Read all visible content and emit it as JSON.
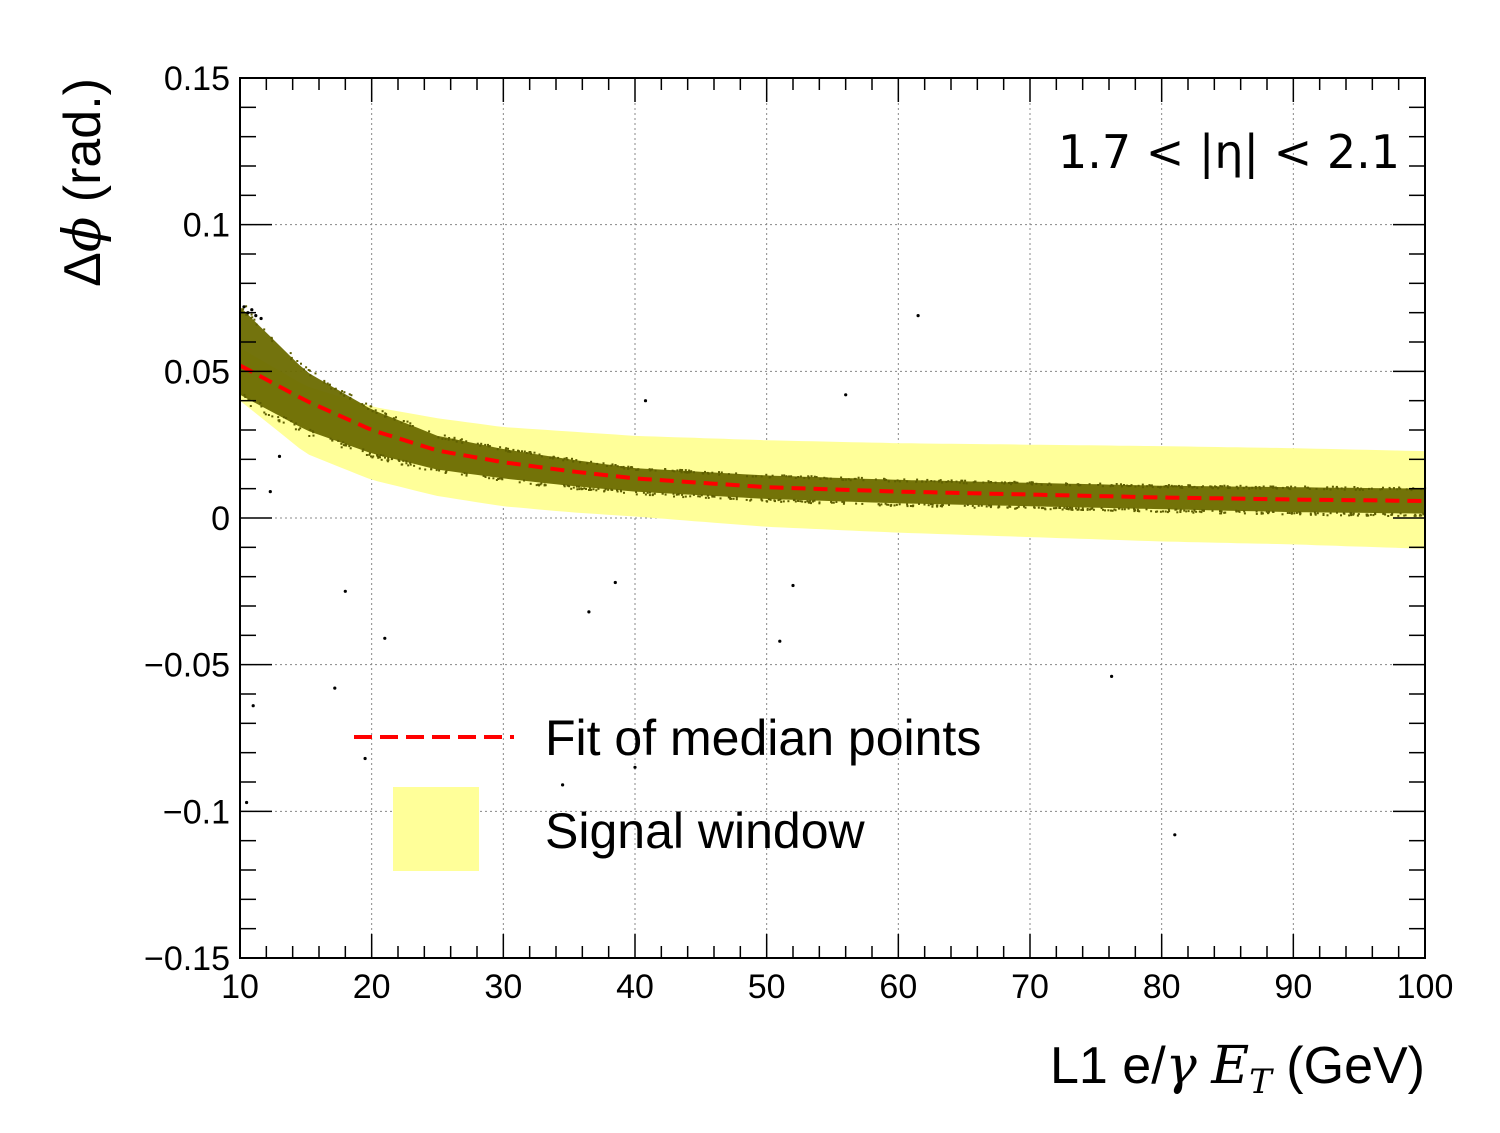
{
  "chart_data": {
    "type": "scatter",
    "title": "",
    "region_label": "1.7 < |η| < 2.1",
    "xlabel": "L1 e/γ E_T (GeV)",
    "xlabel_parts": {
      "prefix": "L1 e/",
      "gamma": "γ",
      "space": " ",
      "e": "E",
      "t": "T",
      "suffix": " (GeV)"
    },
    "ylabel": "Δϕ (rad.)",
    "ylabel_parts": {
      "delta": "Δ",
      "phi": "ϕ",
      "suffix": " (rad.)"
    },
    "xlim": [
      10,
      100
    ],
    "ylim": [
      -0.15,
      0.15
    ],
    "x_ticks": [
      10,
      20,
      30,
      40,
      50,
      60,
      70,
      80,
      90,
      100
    ],
    "y_ticks": [
      -0.15,
      -0.1,
      -0.05,
      0,
      0.05,
      0.1,
      0.15
    ],
    "x_tick_labels": [
      "10",
      "20",
      "30",
      "40",
      "50",
      "60",
      "70",
      "80",
      "90",
      "100"
    ],
    "y_tick_labels": [
      "−0.15",
      "−0.1",
      "−0.05",
      "0",
      "0.05",
      "0.1",
      "0.15"
    ],
    "grid": true,
    "legend_position": "bottom-left",
    "median_fit": {
      "name": "Fit of median points",
      "color": "#ff0000",
      "style": "dashed",
      "x": [
        10,
        15,
        20,
        25,
        30,
        35,
        40,
        50,
        60,
        70,
        80,
        90,
        100
      ],
      "y": [
        0.052,
        0.04,
        0.03,
        0.023,
        0.019,
        0.016,
        0.0135,
        0.0105,
        0.009,
        0.008,
        0.007,
        0.0063,
        0.0058
      ]
    },
    "signal_window": {
      "name": "Signal window",
      "color": "#ffff99",
      "x": [
        10,
        15,
        20,
        25,
        30,
        35,
        40,
        50,
        60,
        70,
        80,
        90,
        100
      ],
      "upper": [
        0.058,
        0.045,
        0.038,
        0.034,
        0.031,
        0.0295,
        0.028,
        0.0265,
        0.0255,
        0.025,
        0.0245,
        0.0238,
        0.0228
      ],
      "lower": [
        0.04,
        0.022,
        0.013,
        0.0075,
        0.004,
        0.002,
        0.0005,
        -0.003,
        -0.005,
        -0.0065,
        -0.008,
        -0.009,
        -0.0105
      ]
    },
    "data_band": {
      "color": "#6b6b00",
      "x": [
        10,
        15,
        20,
        25,
        30,
        35,
        40,
        50,
        60,
        70,
        80,
        90,
        100
      ],
      "upper": [
        0.072,
        0.05,
        0.037,
        0.028,
        0.0235,
        0.02,
        0.017,
        0.0145,
        0.013,
        0.012,
        0.011,
        0.0105,
        0.01
      ],
      "lower": [
        0.042,
        0.03,
        0.022,
        0.0165,
        0.0135,
        0.011,
        0.009,
        0.0065,
        0.005,
        0.004,
        0.003,
        0.002,
        0.0015
      ]
    },
    "outliers": {
      "x": [
        10.3,
        10.6,
        10.9,
        11.2,
        11.6,
        13.0,
        18.0,
        19.5,
        21.0,
        17.2,
        34.5,
        36.5,
        38.5,
        40.0,
        40.8,
        51.0,
        52.0,
        56.0,
        61.5,
        76.2,
        81.0,
        12.3,
        10.5,
        11.0
      ],
      "y": [
        0.072,
        0.07,
        0.071,
        0.069,
        0.068,
        0.021,
        -0.025,
        -0.082,
        -0.041,
        -0.058,
        -0.091,
        -0.032,
        -0.022,
        -0.085,
        0.04,
        -0.042,
        -0.023,
        0.042,
        0.069,
        -0.054,
        -0.108,
        0.009,
        -0.097,
        -0.064
      ]
    }
  }
}
